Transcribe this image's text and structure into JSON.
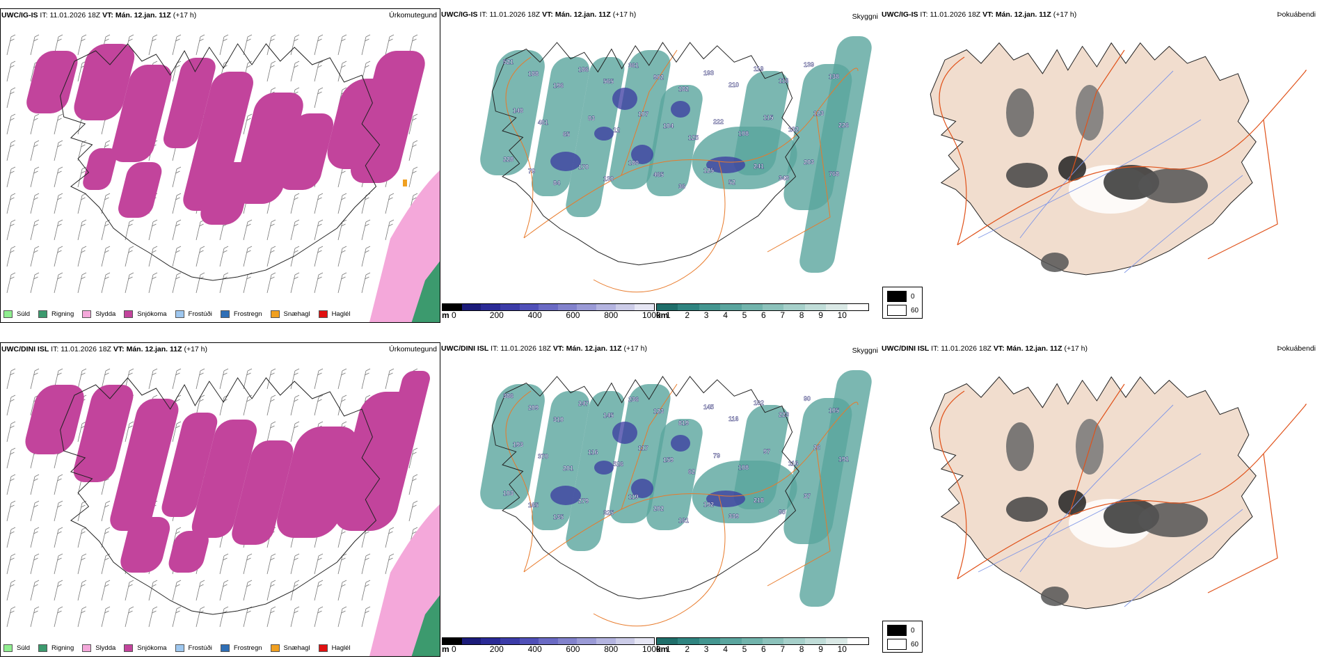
{
  "rows": [
    {
      "model": "UWC/IG-IS",
      "precip": {
        "title": "Úrkomutegund"
      },
      "vis": {
        "title": "Skyggni",
        "labels": [
          "521",
          "188",
          "196",
          "186",
          "565",
          "361",
          "902",
          "182",
          "193",
          "210",
          "119",
          "116",
          "139",
          "138",
          "148",
          "481",
          "65",
          "83",
          "12",
          "107",
          "104",
          "125",
          "222",
          "108",
          "115",
          "132",
          "123",
          "226",
          "228",
          "79",
          "84",
          "170",
          "130",
          "180",
          "465",
          "36",
          "125",
          "52",
          "241",
          "343",
          "203",
          "768"
        ]
      },
      "fog": {
        "title": "Þokuábendi"
      }
    },
    {
      "model": "UWC/DINI ISL",
      "precip": {
        "title": "Úrkomutegund"
      },
      "vis": {
        "title": "Skyggni",
        "labels": [
          "386",
          "209",
          "310",
          "247",
          "145",
          "236",
          "123",
          "819",
          "145",
          "116",
          "102",
          "223",
          "90",
          "105",
          "193",
          "370",
          "201",
          "116",
          "526",
          "117",
          "159",
          "62",
          "79",
          "108",
          "97",
          "116",
          "26",
          "191",
          "103",
          "165",
          "135",
          "279",
          "325",
          "119",
          "202",
          "161",
          "192",
          "339",
          "218",
          "80",
          "37"
        ]
      },
      "fog": {
        "title": "Þokuábendi"
      }
    }
  ],
  "header": {
    "it_label": "IT:",
    "it_value": "11.01.2026 18Z",
    "vt_label": "VT:",
    "vt_value": "Mán. 12.jan. 11Z",
    "offset": "(+17 h)"
  },
  "precip_legend": [
    {
      "label": "Súld",
      "color": "#90ee90"
    },
    {
      "label": "Rigning",
      "color": "#3c9a6e"
    },
    {
      "label": "Slydda",
      "color": "#f4a8da"
    },
    {
      "label": "Snjókoma",
      "color": "#c2449c"
    },
    {
      "label": "Frostúði",
      "color": "#9ec7ef"
    },
    {
      "label": "Frostregn",
      "color": "#2f6fb6"
    },
    {
      "label": "Snæhagl",
      "color": "#f0a020"
    },
    {
      "label": "Haglél",
      "color": "#e01010"
    }
  ],
  "elev_bar": {
    "unit": "m",
    "ticks": [
      "0",
      "200",
      "400",
      "600",
      "800",
      "1000"
    ],
    "colors": [
      "#000000",
      "#1c1c7a",
      "#2a2a96",
      "#3c3ca8",
      "#5050b8",
      "#6a6ac4",
      "#8282cc",
      "#9a9ad6",
      "#b4b4e0",
      "#cccce8",
      "#e6e6f4"
    ]
  },
  "vis_bar": {
    "unit": "km",
    "ticks": [
      "1",
      "2",
      "3",
      "4",
      "5",
      "6",
      "7",
      "8",
      "9",
      "10"
    ],
    "colors": [
      "#1f6e6a",
      "#2f8480",
      "#449690",
      "#5aa59e",
      "#72b4ac",
      "#8cc2bb",
      "#a6d0ca",
      "#c0ddd8",
      "#dae9e6",
      "#ffffff"
    ]
  },
  "fog_legend": [
    {
      "label": "0",
      "color": "#000000"
    },
    {
      "label": "60",
      "color": "#ffffff"
    }
  ]
}
